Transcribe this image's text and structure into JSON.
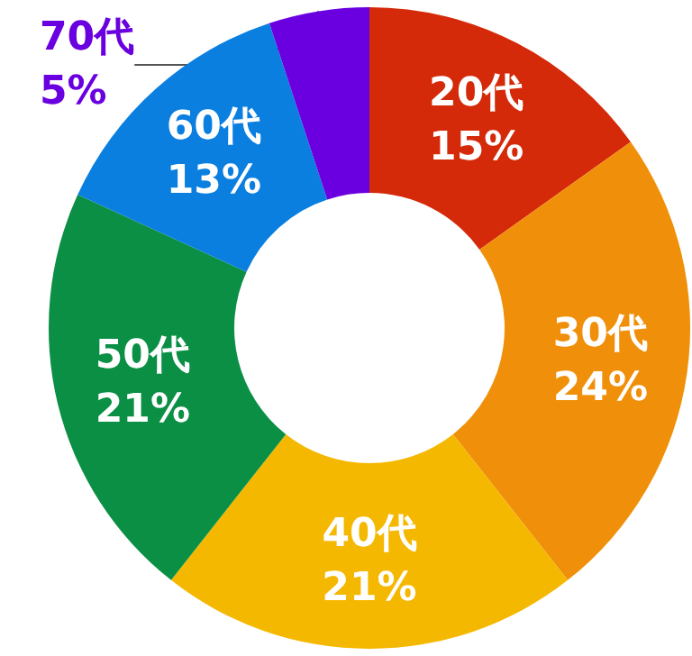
{
  "chart_data": {
    "type": "donut",
    "categories": [
      "20代",
      "30代",
      "40代",
      "50代",
      "60代",
      "70代"
    ],
    "values": [
      15,
      24,
      21,
      21,
      13,
      5
    ],
    "value_labels": [
      "15%",
      "24%",
      "21%",
      "21%",
      "13%",
      "5%"
    ],
    "colors": [
      "#d42a0a",
      "#f0900a",
      "#f5b800",
      "#0a8f45",
      "#0a7fe0",
      "#6a00e0"
    ],
    "legend": false
  }
}
